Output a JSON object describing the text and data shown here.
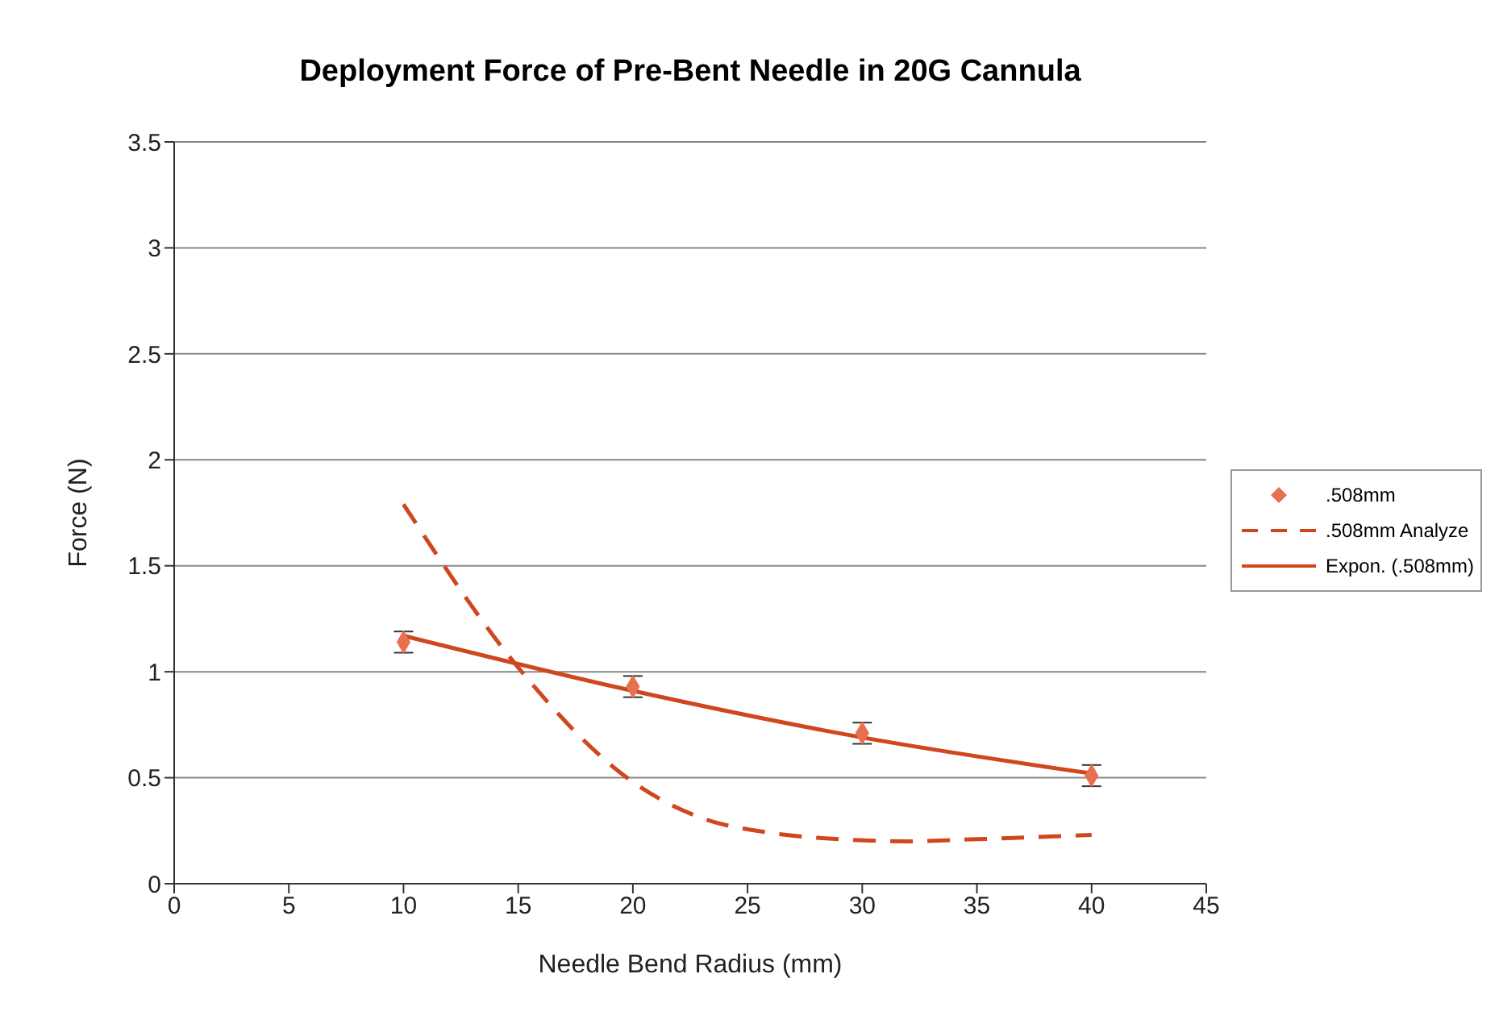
{
  "chart_data": {
    "type": "scatter",
    "title": "Deployment Force of Pre-Bent Needle in 20G Cannula",
    "xlabel": "Needle Bend Radius (mm)",
    "ylabel": "Force (N)",
    "xlim": [
      0,
      45
    ],
    "xticks": [
      0,
      5,
      10,
      15,
      20,
      25,
      30,
      35,
      40,
      45
    ],
    "ylim": [
      0,
      3.5
    ],
    "yticks": [
      0,
      0.5,
      1,
      1.5,
      2,
      2.5,
      3,
      3.5
    ],
    "grid": "y",
    "legend": "right",
    "series": [
      {
        "name": ".508mm",
        "color": "#e8704f",
        "marker": "diamond",
        "x": [
          10,
          20,
          30,
          40
        ],
        "values": [
          1.14,
          0.93,
          0.71,
          0.51
        ],
        "errors": [
          0.05,
          0.05,
          0.05,
          0.05
        ]
      },
      {
        "name": ".508mm Analyze",
        "type": "line",
        "color": "#d0461e",
        "line_style": "dashed",
        "marker": "none",
        "x": [
          10,
          15,
          20,
          23,
          26,
          29,
          32,
          35,
          40
        ],
        "values": [
          1.79,
          1.02,
          0.48,
          0.31,
          0.24,
          0.21,
          0.2,
          0.21,
          0.23
        ]
      },
      {
        "name": "Expon. (.508mm)",
        "type": "line",
        "color": "#d0461e",
        "line_style": "solid",
        "marker": "none",
        "x": [
          10,
          20,
          30,
          40
        ],
        "values": [
          1.17,
          0.91,
          0.69,
          0.52
        ]
      }
    ]
  }
}
